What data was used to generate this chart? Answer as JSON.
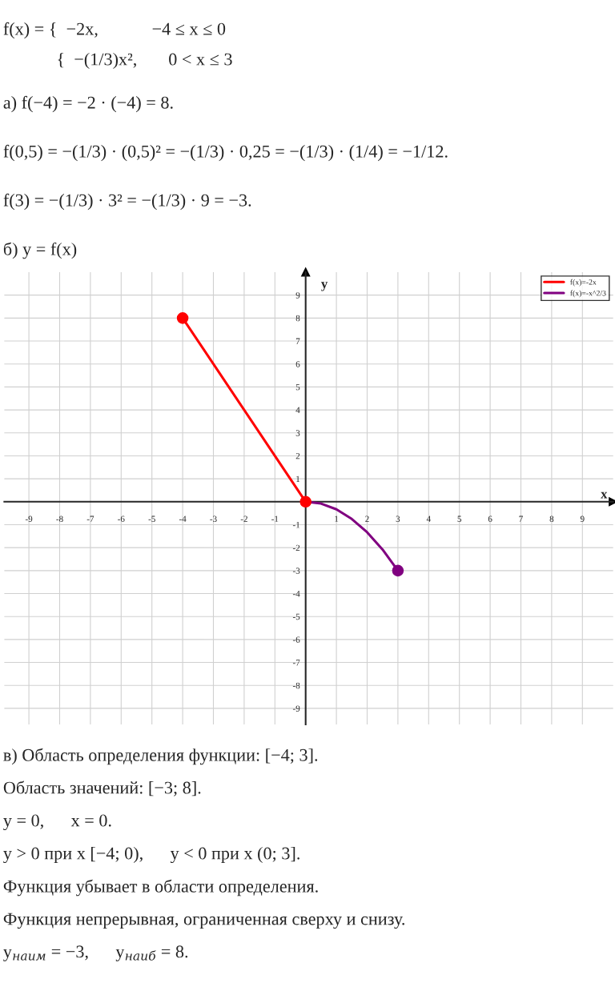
{
  "chart_data": {
    "type": "line",
    "xlabel": "x",
    "ylabel": "y",
    "series": [
      {
        "name": "f(x)=-2x",
        "color": "#ff0000",
        "x": [
          -4,
          0
        ],
        "values": [
          8,
          0
        ]
      },
      {
        "name": "f(x)=-x^2/3",
        "color": "#800080",
        "x": [
          0,
          0.5,
          1,
          1.5,
          2,
          2.5,
          3
        ],
        "values": [
          0,
          -0.08,
          -0.33,
          -0.75,
          -1.33,
          -2.08,
          -3
        ]
      },
      {
        "color": "#ff0000",
        "type": "scatter",
        "marker": "circle",
        "x": [
          -4,
          0
        ],
        "values": [
          8,
          0
        ]
      },
      {
        "color": "#800080",
        "type": "scatter",
        "marker": "circle",
        "x": [
          3
        ],
        "values": [
          -3
        ]
      }
    ],
    "xlim": [
      -9.8,
      10
    ],
    "ylim": [
      -9.7,
      10
    ],
    "xticks": [
      -9,
      -8,
      -7,
      -6,
      -5,
      -4,
      -3,
      -2,
      -1,
      1,
      2,
      3,
      4,
      5,
      6,
      7,
      8,
      9
    ],
    "yticks": [
      -9,
      -8,
      -7,
      -6,
      -5,
      -4,
      -3,
      -2,
      -1,
      1,
      2,
      3,
      4,
      5,
      6,
      7,
      8,
      9
    ],
    "grid": true,
    "legend": "top right",
    "line_style": "solid",
    "annotations": [
      "f(x) = {  −2x,            −4 ≤ x ≤ 0",
      "            {  −(1/3)x²,       0 < x ≤ 3",
      "а) f(−4) = −2 · (−4) = 8.",
      "f(0,5) = −(1/3) · (0,5)² = −(1/3) · 0,25 = −(1/3) · (1/4) = −1/12.",
      "f(3) = −(1/3) · 3² = −(1/3) · 9 = −3.",
      "б) y = f(x)",
      "в) Область определения функции: [−4; 3].",
      "Область значений: [−3; 8].",
      "y = 0,      x = 0.",
      "y > 0 при x [−4; 0),      y < 0 при x (0; 3].",
      "Функция убывает в области определения.",
      "Функция непрерывная, ограниченная сверху и снизу.",
      "y$_{наим}$ = −3,      y$_{наиб}$ = 8."
    ]
  }
}
